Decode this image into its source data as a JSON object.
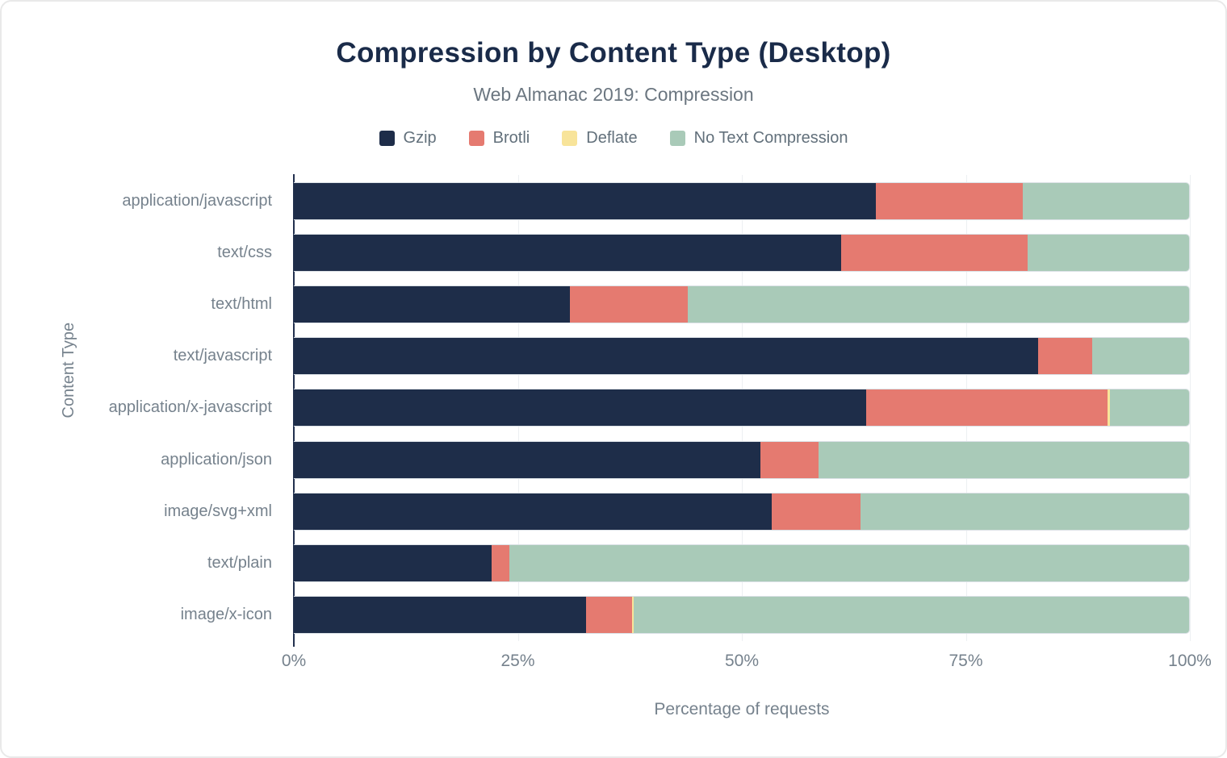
{
  "chart_data": {
    "type": "bar",
    "orientation": "horizontal",
    "stacked": true,
    "title": "Compression by Content Type (Desktop)",
    "subtitle": "Web Almanac 2019: Compression",
    "xlabel": "Percentage of requests",
    "ylabel": "Content Type",
    "xlim": [
      0,
      100
    ],
    "x_ticks": [
      "0%",
      "25%",
      "50%",
      "75%",
      "100%"
    ],
    "grid": true,
    "legend_position": "top",
    "categories": [
      "application/javascript",
      "text/css",
      "text/html",
      "text/javascript",
      "application/x-javascript",
      "application/json",
      "image/svg+xml",
      "text/plain",
      "image/x-icon"
    ],
    "series": [
      {
        "name": "Gzip",
        "color": "#1e2d49",
        "values": [
          65.0,
          61.1,
          30.8,
          83.1,
          63.9,
          52.1,
          53.4,
          22.1,
          32.6
        ]
      },
      {
        "name": "Brotli",
        "color": "#e57a70",
        "values": [
          16.4,
          20.9,
          13.2,
          6.1,
          27.0,
          6.5,
          9.9,
          2.0,
          5.2
        ]
      },
      {
        "name": "Deflate",
        "color": "#f8e49a",
        "values": [
          0,
          0,
          0,
          0,
          0.3,
          0,
          0,
          0,
          0.2
        ]
      },
      {
        "name": "No Text Compression",
        "color": "#a9cab8",
        "values": [
          18.6,
          18.0,
          56.0,
          10.8,
          8.8,
          41.4,
          36.7,
          75.9,
          62.0
        ]
      }
    ],
    "colors": {
      "title": "#1a2b49",
      "subtitle": "#6b7680",
      "axis_text": "#76828d",
      "axis_line": "#22304e",
      "gridline": "#edf0f2"
    }
  }
}
